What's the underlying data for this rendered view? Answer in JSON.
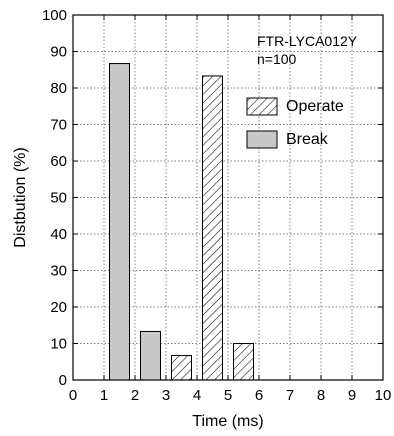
{
  "chart_data": {
    "type": "bar",
    "title": "",
    "xlabel": "Time (ms)",
    "ylabel": "Distbution (%)",
    "xlim": [
      0,
      10
    ],
    "ylim": [
      0,
      100
    ],
    "xticks": [
      0,
      1,
      2,
      3,
      4,
      5,
      6,
      7,
      8,
      9,
      10
    ],
    "yticks": [
      0,
      10,
      20,
      30,
      40,
      50,
      60,
      70,
      80,
      90,
      100
    ],
    "grid": true,
    "grid_style": "dotted",
    "legend_position": "upper-right",
    "annotation": {
      "model": "FTR-LYCA012Y",
      "sample": "n=100"
    },
    "series": [
      {
        "name": "Operate",
        "pattern": "hatched",
        "color": "#ffffff",
        "bars": [
          {
            "x_start": 3,
            "x_end": 4,
            "value": 6.7
          },
          {
            "x_start": 4,
            "x_end": 5,
            "value": 83.3
          },
          {
            "x_start": 5,
            "x_end": 6,
            "value": 10.0
          }
        ]
      },
      {
        "name": "Break",
        "pattern": "solid",
        "color": "#c8c8c8",
        "bars": [
          {
            "x_start": 1,
            "x_end": 2,
            "value": 86.7
          },
          {
            "x_start": 2,
            "x_end": 3,
            "value": 13.3
          }
        ]
      }
    ]
  }
}
